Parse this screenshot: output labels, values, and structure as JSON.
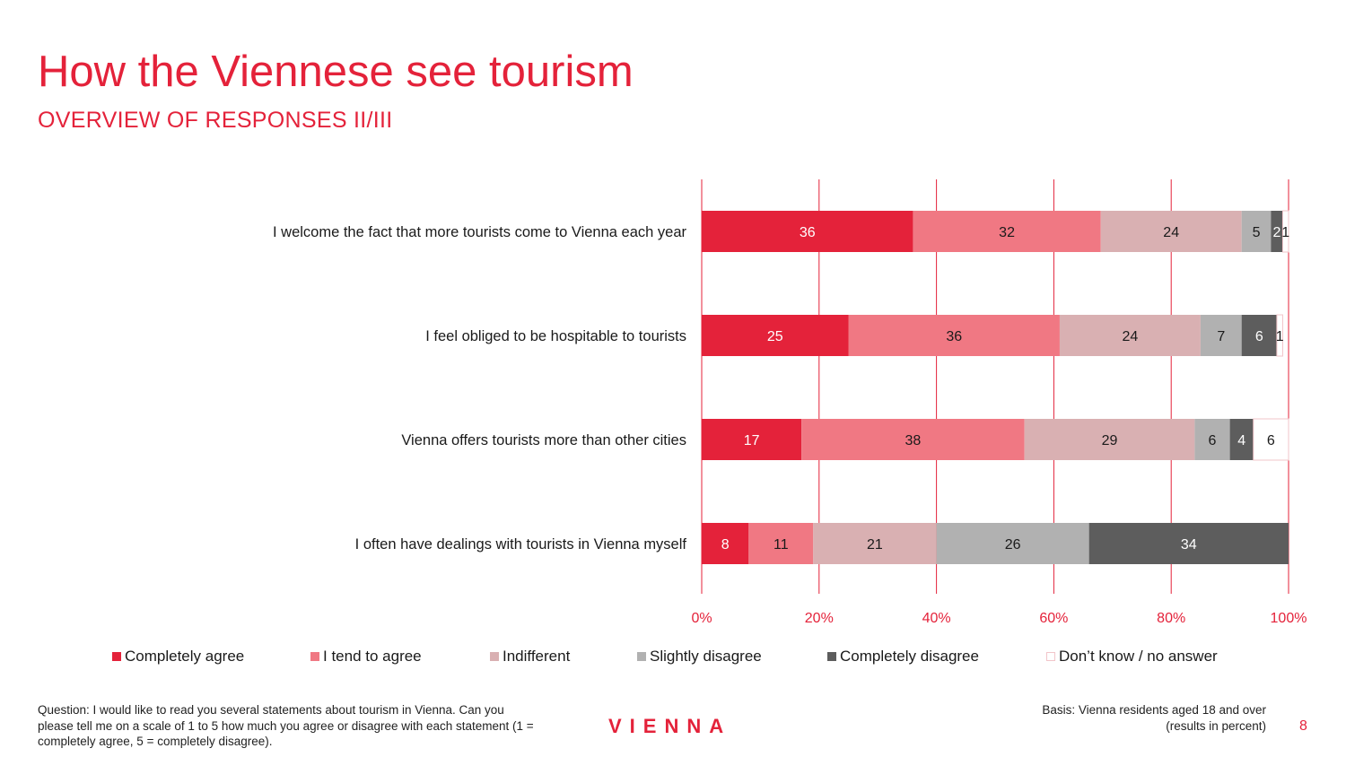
{
  "header": {
    "title": "How the Viennese see tourism",
    "subtitle": "OVERVIEW OF RESPONSES II/III"
  },
  "chart_data": {
    "type": "bar",
    "orientation": "horizontal",
    "stacked": true,
    "categories": [
      "I welcome the fact that more tourists come to Vienna each year",
      "I feel obliged to be hospitable to tourists",
      "Vienna offers tourists more than other cities",
      "I often have dealings with tourists in Vienna myself"
    ],
    "series": [
      {
        "name": "Completely agree",
        "color": "#e4223a",
        "label_color": "#ffffff",
        "values": [
          36,
          25,
          17,
          8
        ]
      },
      {
        "name": "I tend to agree",
        "color": "#f07883",
        "label_color": "#1a1a1a",
        "values": [
          32,
          36,
          38,
          11
        ]
      },
      {
        "name": "Indifferent",
        "color": "#d9b0b2",
        "label_color": "#1a1a1a",
        "values": [
          24,
          24,
          29,
          21
        ]
      },
      {
        "name": "Slightly disagree",
        "color": "#b1b1b1",
        "label_color": "#1a1a1a",
        "values": [
          5,
          7,
          6,
          26
        ]
      },
      {
        "name": "Completely disagree",
        "color": "#5d5d5d",
        "label_color": "#ffffff",
        "values": [
          2,
          6,
          4,
          34
        ]
      },
      {
        "name": "Don’t know / no answer",
        "color": "#ffffff",
        "label_color": "#1a1a1a",
        "values": [
          1,
          1,
          6,
          0
        ]
      }
    ],
    "xlim": [
      0,
      100
    ],
    "xticks": [
      "0%",
      "20%",
      "40%",
      "60%",
      "80%",
      "100%"
    ],
    "grid": true,
    "gridline_color": "#e4223a",
    "legend_position": "bottom"
  },
  "footer": {
    "question": "Question: I would like to read you several statements about tourism in Vienna. Can you please tell me on a scale of 1 to 5 how much you agree or disagree with each statement (1 = completely agree, 5 = completely disagree).",
    "logo": "VIENNA",
    "basis_line1": "Basis: Vienna residents aged 18 and over",
    "basis_line2": "(results in percent)",
    "page_number": "8"
  }
}
